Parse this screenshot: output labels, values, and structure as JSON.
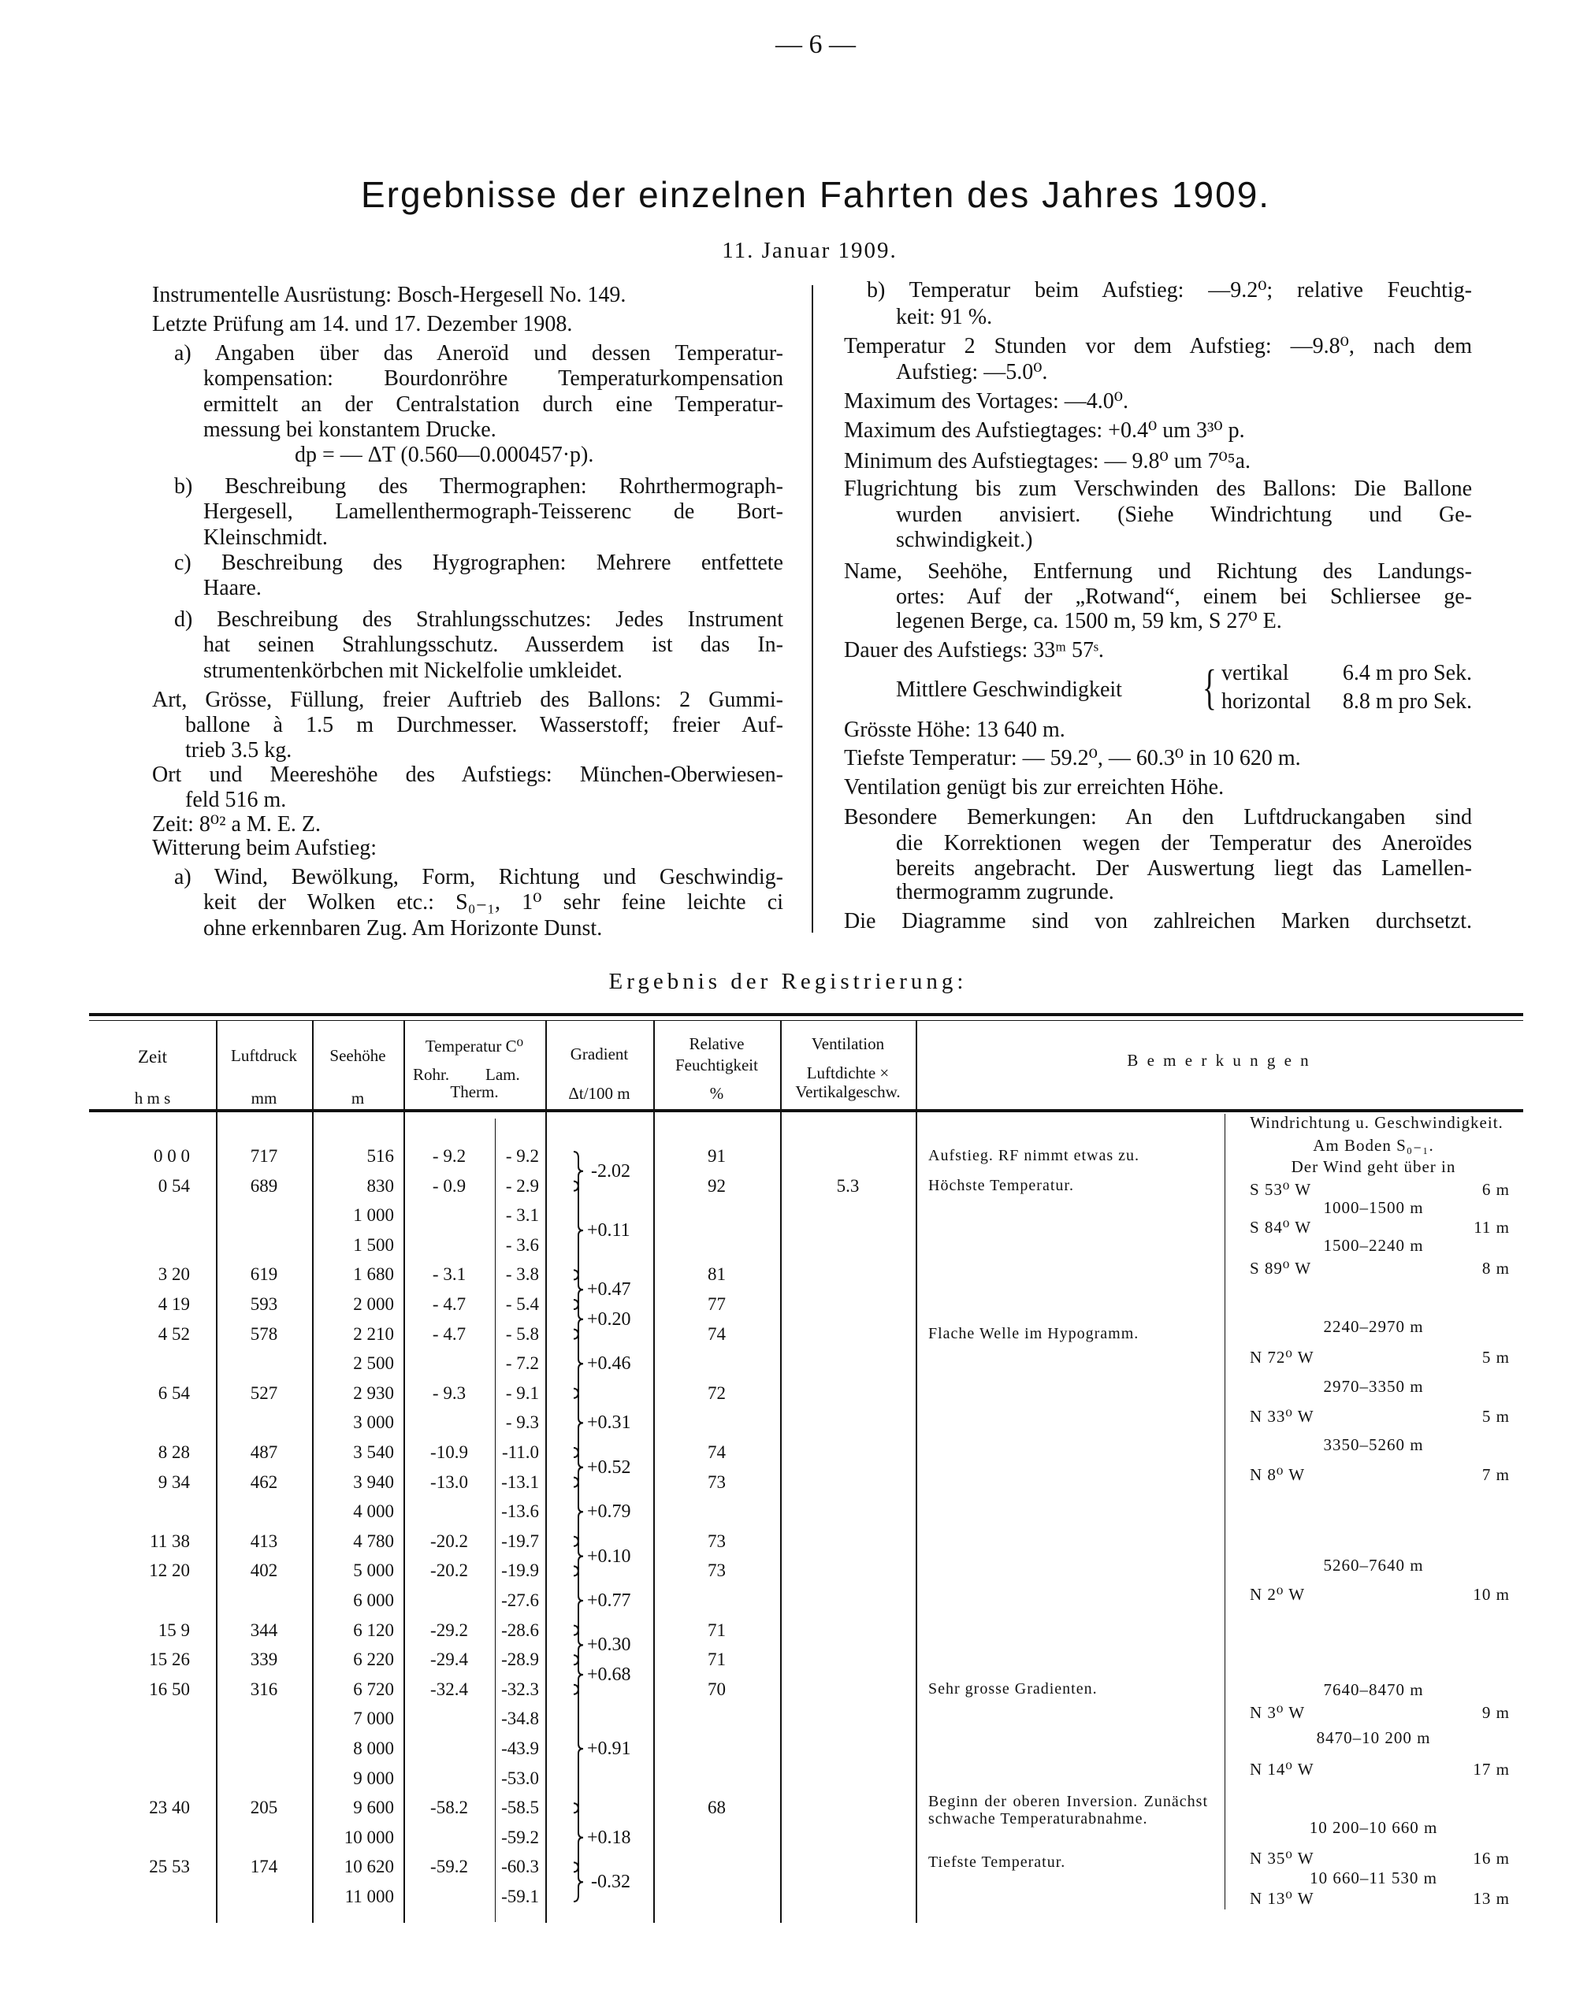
{
  "page_number": "— 6 —",
  "title": "Ergebnisse der einzelnen Fahrten des Jahres 1909.",
  "date": "11. Januar 1909.",
  "left_lines": [
    "Instrumentelle Ausrüstung: Bosch-Hergesell No. 149.",
    "Letzte Prüfung am 14. und 17. Dezember 1908.",
    "a) Angaben über das Aneroïd und dessen Temperatur-",
    "kompensation: Bourdonröhre Temperaturkompensation",
    "ermittelt an der Centralstation durch eine Temperatur-",
    "messung bei konstantem Drucke.",
    "dp = — ΔT (0.560—0.000457·p).",
    "b) Beschreibung des Thermographen: Rohrthermograph-",
    "Hergesell, Lamellenthermograph-Teisserenc de Bort-",
    "Kleinschmidt.",
    "c) Beschreibung des Hygrographen: Mehrere entfettete",
    "Haare.",
    "d) Beschreibung des Strahlungsschutzes: Jedes Instrument",
    "hat seinen Strahlungsschutz. Ausserdem ist das In-",
    "strumentenkörbchen mit Nickelfolie umkleidet.",
    "Art, Grösse, Füllung, freier Auftrieb des Ballons: 2 Gummi-",
    "ballone à 1.5 m Durchmesser. Wasserstoff; freier Auf-",
    "trieb 3.5 kg.",
    "Ort und Meereshöhe des Aufstiegs: München-Oberwiesen-",
    "feld 516 m.",
    "Zeit: 8⁰² a M. E. Z.",
    "Witterung beim Aufstieg:",
    "a) Wind, Bewölkung, Form, Richtung und Geschwindig-",
    "keit der Wolken etc.: S₀₋₁, 1⁰ sehr feine leichte ci",
    "ohne erkennbaren Zug. Am Horizonte Dunst."
  ],
  "right_lines": [
    "b) Temperatur beim Aufstieg: —9.2⁰; relative Feuchtig-",
    "keit: 91 %.",
    "Temperatur 2 Stunden vor dem Aufstieg: —9.8⁰, nach dem",
    "Aufstieg: —5.0⁰.",
    "Maximum des Vortages: —4.0⁰.",
    "Maximum des Aufstiegtages: +0.4⁰ um 3³⁰ p.",
    "Minimum des Aufstiegtages: — 9.8⁰ um 7⁰⁵a.",
    "Flugrichtung bis zum Verschwinden des Ballons: Die Ballone",
    "wurden anvisiert. (Siehe Windrichtung und Ge-",
    "schwindigkeit.)",
    "Name, Seehöhe, Entfernung und Richtung des Landungs-",
    "ortes: Auf der „Rotwand“, einem bei Schliersee ge-",
    "legenen Berge, ca. 1500 m, 59 km, S 27⁰ E.",
    "Dauer des Aufstiegs: 33ᵐ 57ˢ.",
    "Grösste Höhe: 13 640 m.",
    "Tiefste Temperatur: — 59.2⁰, — 60.3⁰ in 10 620 m.",
    "Ventilation genügt bis zur erreichten Höhe.",
    "Besondere Bemerkungen: An den Luftdruckangaben sind",
    "die Korrektionen wegen der Temperatur des Aneroïdes",
    "bereits angebracht. Der Auswertung liegt das Lamellen-",
    "thermogramm zugrunde.",
    "Die Diagramme sind von zahlreichen Marken durchsetzt."
  ],
  "mean_speed": {
    "label": "Mittlere Geschwindigkeit",
    "vertical_label": "vertikal",
    "vertical_value": "6.4 m pro Sek.",
    "horizontal_label": "horizontal",
    "horizontal_value": "8.8 m pro Sek."
  },
  "table_title": "Ergebnis der Registrierung:",
  "headers": {
    "time": "Zeit",
    "time_unit": "h m s",
    "pressure": "Luftdruck",
    "pressure_unit": "mm",
    "height": "Seehöhe",
    "height_unit": "m",
    "temp": "Temperatur C⁰",
    "temp_rohr": "Rohr.",
    "temp_lam": "Lam.",
    "temp_therm": "Therm.",
    "gradient": "Gradient",
    "gradient_unit": "Δt/100 m",
    "rf1": "Relative",
    "rf2": "Feuchtigkeit",
    "rf_unit": "%",
    "vent1": "Ventilation",
    "vent2": "Luftdichte ×",
    "vent3": "Vertikalgeschw.",
    "remarks": "B e m e r k u n g e n"
  },
  "rows": [
    {
      "time": "0  0  0",
      "pressure": "717",
      "height": "516",
      "rohr": "- 9.2",
      "lam": "- 9.2",
      "rf": "91",
      "vent": "",
      "remark": "Aufstieg.  RF nimmt etwas zu."
    },
    {
      "time": "0 54",
      "pressure": "689",
      "height": "830",
      "rohr": "- 0.9",
      "lam": "- 2.9",
      "rf": "92",
      "vent": "5.3",
      "remark": "Höchste Temperatur."
    },
    {
      "time": "",
      "pressure": "",
      "height": "1 000",
      "rohr": "",
      "lam": "- 3.1",
      "rf": "",
      "vent": "",
      "remark": ""
    },
    {
      "time": "",
      "pressure": "",
      "height": "1 500",
      "rohr": "",
      "lam": "- 3.6",
      "rf": "",
      "vent": "",
      "remark": ""
    },
    {
      "time": "3 20",
      "pressure": "619",
      "height": "1 680",
      "rohr": "- 3.1",
      "lam": "- 3.8",
      "rf": "81",
      "vent": "",
      "remark": ""
    },
    {
      "time": "4 19",
      "pressure": "593",
      "height": "2 000",
      "rohr": "- 4.7",
      "lam": "- 5.4",
      "rf": "77",
      "vent": "",
      "remark": ""
    },
    {
      "time": "4 52",
      "pressure": "578",
      "height": "2 210",
      "rohr": "- 4.7",
      "lam": "- 5.8",
      "rf": "74",
      "vent": "",
      "remark": "Flache Welle im Hypogramm."
    },
    {
      "time": "",
      "pressure": "",
      "height": "2 500",
      "rohr": "",
      "lam": "- 7.2",
      "rf": "",
      "vent": "",
      "remark": ""
    },
    {
      "time": "6 54",
      "pressure": "527",
      "height": "2 930",
      "rohr": "- 9.3",
      "lam": "- 9.1",
      "rf": "72",
      "vent": "",
      "remark": ""
    },
    {
      "time": "",
      "pressure": "",
      "height": "3 000",
      "rohr": "",
      "lam": "- 9.3",
      "rf": "",
      "vent": "",
      "remark": ""
    },
    {
      "time": "8 28",
      "pressure": "487",
      "height": "3 540",
      "rohr": "-10.9",
      "lam": "-11.0",
      "rf": "74",
      "vent": "",
      "remark": ""
    },
    {
      "time": "9 34",
      "pressure": "462",
      "height": "3 940",
      "rohr": "-13.0",
      "lam": "-13.1",
      "rf": "73",
      "vent": "",
      "remark": ""
    },
    {
      "time": "",
      "pressure": "",
      "height": "4 000",
      "rohr": "",
      "lam": "-13.6",
      "rf": "",
      "vent": "",
      "remark": ""
    },
    {
      "time": "11 38",
      "pressure": "413",
      "height": "4 780",
      "rohr": "-20.2",
      "lam": "-19.7",
      "rf": "73",
      "vent": "",
      "remark": ""
    },
    {
      "time": "12 20",
      "pressure": "402",
      "height": "5 000",
      "rohr": "-20.2",
      "lam": "-19.9",
      "rf": "73",
      "vent": "",
      "remark": ""
    },
    {
      "time": "",
      "pressure": "",
      "height": "6 000",
      "rohr": "",
      "lam": "-27.6",
      "rf": "",
      "vent": "",
      "remark": ""
    },
    {
      "time": "15   9",
      "pressure": "344",
      "height": "6 120",
      "rohr": "-29.2",
      "lam": "-28.6",
      "rf": "71",
      "vent": "",
      "remark": ""
    },
    {
      "time": "15 26",
      "pressure": "339",
      "height": "6 220",
      "rohr": "-29.4",
      "lam": "-28.9",
      "rf": "71",
      "vent": "",
      "remark": ""
    },
    {
      "time": "16 50",
      "pressure": "316",
      "height": "6 720",
      "rohr": "-32.4",
      "lam": "-32.3",
      "rf": "70",
      "vent": "",
      "remark": "Sehr grosse Gradienten."
    },
    {
      "time": "",
      "pressure": "",
      "height": "7 000",
      "rohr": "",
      "lam": "-34.8",
      "rf": "",
      "vent": "",
      "remark": ""
    },
    {
      "time": "",
      "pressure": "",
      "height": "8 000",
      "rohr": "",
      "lam": "-43.9",
      "rf": "",
      "vent": "",
      "remark": ""
    },
    {
      "time": "",
      "pressure": "",
      "height": "9 000",
      "rohr": "",
      "lam": "-53.0",
      "rf": "",
      "vent": "",
      "remark": ""
    },
    {
      "time": "23 40",
      "pressure": "205",
      "height": "9 600",
      "rohr": "-58.2",
      "lam": "-58.5",
      "rf": "68",
      "vent": "",
      "remark": "Beginn der oberen Inversion. Zunächst schwache Temperaturabnahme."
    },
    {
      "time": "",
      "pressure": "",
      "height": "10 000",
      "rohr": "",
      "lam": "-59.2",
      "rf": "",
      "vent": "",
      "remark": ""
    },
    {
      "time": "25 53",
      "pressure": "174",
      "height": "10 620",
      "rohr": "-59.2",
      "lam": "-60.3",
      "rf": "",
      "vent": "",
      "remark": "Tiefste Temperatur."
    },
    {
      "time": "",
      "pressure": "",
      "height": "11 000",
      "rohr": "",
      "lam": "-59.1",
      "rf": "",
      "vent": "",
      "remark": ""
    }
  ],
  "gradients": [
    "-2.02",
    "+0.11",
    "+0.47",
    "+0.20",
    "+0.46",
    "+0.31",
    "+0.52",
    "+0.79",
    "+0.10",
    "+0.77",
    "+0.30",
    "+0.68",
    "+0.91",
    "+0.18",
    "-0.32"
  ],
  "wind": {
    "header": "Windrichtung u. Geschwindigkeit.",
    "ground": "Am Boden S₀₋₁.",
    "intro": "Der Wind geht über in",
    "entries": [
      {
        "range": "",
        "direction": "S 53⁰ W",
        "speed": "6 m"
      },
      {
        "range": "1000–1500 m",
        "direction": "S 84⁰ W",
        "speed": "11 m"
      },
      {
        "range": "1500–2240 m",
        "direction": "S 89⁰ W",
        "speed": "8 m"
      },
      {
        "range": "2240–2970 m",
        "direction": "N 72⁰ W",
        "speed": "5 m"
      },
      {
        "range": "2970–3350 m",
        "direction": "N 33⁰ W",
        "speed": "5 m"
      },
      {
        "range": "3350–5260 m",
        "direction": "N 8⁰ W",
        "speed": "7 m"
      },
      {
        "range": "5260–7640 m",
        "direction": "N 2⁰ W",
        "speed": "10 m"
      },
      {
        "range": "7640–8470 m",
        "direction": "N 3⁰ W",
        "speed": "9 m"
      },
      {
        "range": "8470–10 200 m",
        "direction": "N 14⁰ W",
        "speed": "17 m"
      },
      {
        "range": "10 200–10 660 m",
        "direction": "N 35⁰ W",
        "speed": "16 m"
      },
      {
        "range": "10 660–11 530 m",
        "direction": "N 13⁰ W",
        "speed": "13 m"
      }
    ]
  }
}
